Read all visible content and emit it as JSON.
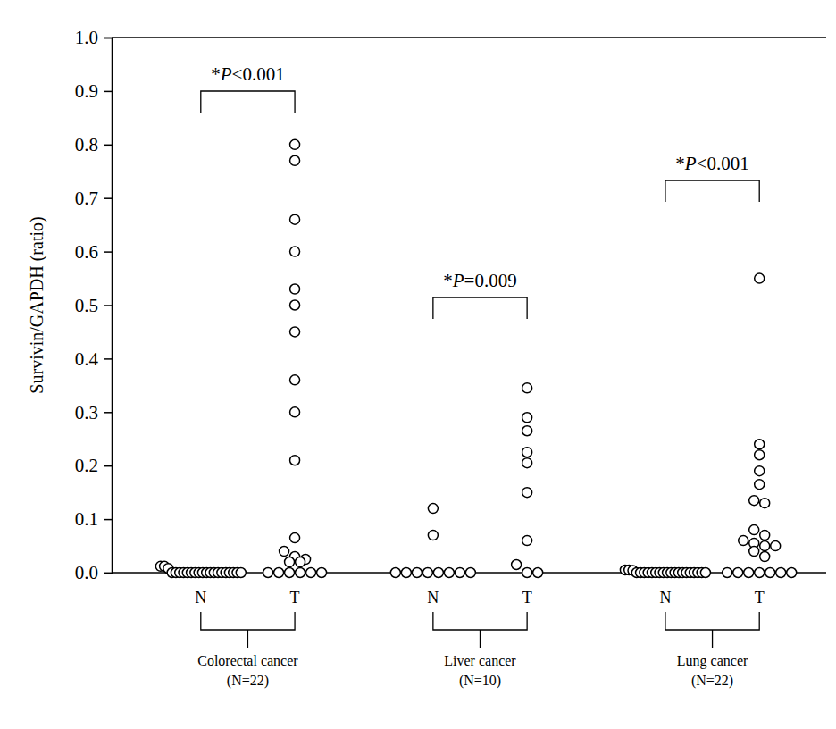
{
  "chart_data": {
    "type": "scatter",
    "marker": "open-circle",
    "y_label": "Survivin/GAPDH (ratio)",
    "categories": [
      "N",
      "T",
      "N",
      "T",
      "N",
      "T"
    ],
    "groups": [
      {
        "label": "Colorectal cancer",
        "n": "(N=22)"
      },
      {
        "label": "Liver  cancer",
        "n": "(N=10)"
      },
      {
        "label": "Lung cancer",
        "n": "(N=22)"
      }
    ],
    "annotations": [
      "*P<0.001",
      "*P=0.009",
      "*P<0.001"
    ],
    "values": [
      [
        0.012,
        0.012,
        0.008,
        0,
        0,
        0,
        0,
        0,
        0,
        0,
        0,
        0,
        0,
        0,
        0,
        0,
        0,
        0,
        0,
        0,
        0,
        0
      ],
      [
        0.8,
        0.77,
        0.66,
        0.6,
        0.53,
        0.5,
        0.45,
        0.36,
        0.3,
        0.21,
        0.065,
        0.04,
        0.03,
        0.025,
        0.02,
        0.02,
        0,
        0,
        0,
        0,
        0,
        0
      ],
      [
        0.12,
        0.07,
        0,
        0,
        0,
        0,
        0,
        0,
        0,
        0
      ],
      [
        0.345,
        0.29,
        0.265,
        0.225,
        0.205,
        0.15,
        0.06,
        0.015,
        0,
        0
      ],
      [
        0.005,
        0.005,
        0.004,
        0,
        0,
        0,
        0,
        0,
        0,
        0,
        0,
        0,
        0,
        0,
        0,
        0,
        0,
        0,
        0,
        0,
        0,
        0
      ],
      [
        0.55,
        0.24,
        0.22,
        0.19,
        0.165,
        0.135,
        0.13,
        0.08,
        0.07,
        0.06,
        0.055,
        0.05,
        0.05,
        0.04,
        0.03,
        0,
        0,
        0,
        0,
        0,
        0,
        0
      ]
    ],
    "ylim": [
      0,
      1
    ],
    "yticks": [
      {
        "value": 0,
        "label": "0.0"
      },
      {
        "value": 0.1,
        "label": "0.1"
      },
      {
        "value": 0.2,
        "label": "0.2"
      },
      {
        "value": 0.3,
        "label": "0.3"
      },
      {
        "value": 0.4,
        "label": "0.4"
      },
      {
        "value": 0.5,
        "label": "0.5"
      },
      {
        "value": 0.6,
        "label": "0.6"
      },
      {
        "value": 0.7,
        "label": "0.7"
      },
      {
        "value": 0.8,
        "label": "0.8"
      },
      {
        "value": 0.9,
        "label": "0.9"
      },
      {
        "value": 1,
        "label": "1.0"
      }
    ]
  }
}
